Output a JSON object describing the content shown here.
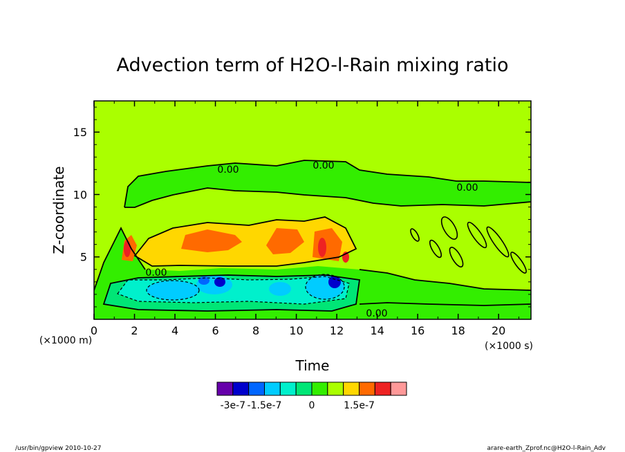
{
  "chart_data": {
    "type": "heatmap",
    "title": "Advection term of H2O-l-Rain mixing ratio",
    "xlabel": "Time",
    "ylabel": "Z-coordinate",
    "x_unit_note": "(×1000 s)",
    "y_unit_note": "(×1000 m)",
    "xlim": [
      0,
      21.6
    ],
    "ylim": [
      0,
      17.5
    ],
    "x_ticks": [
      "0",
      "2",
      "4",
      "6",
      "8",
      "10",
      "12",
      "14",
      "16",
      "18",
      "20"
    ],
    "y_ticks": [
      "5",
      "10",
      "15"
    ],
    "contour_labels": [
      "0.00",
      "0.00",
      "0.00",
      "0.00",
      "0.00"
    ],
    "colorbar": {
      "colors": [
        "#6600aa",
        "#0000cc",
        "#0066ff",
        "#00ccff",
        "#00f0cc",
        "#00e676",
        "#33ee00",
        "#aaff00",
        "#ffd700",
        "#ff6a00",
        "#ee2222",
        "#ff9999"
      ],
      "tick_labels": [
        "-3e-7",
        "-1.5e-7",
        "0",
        "1.5e-7"
      ]
    },
    "grid": false
  },
  "footer": {
    "left": "/usr/bin/gpview   2010-10-27",
    "right": "arare-earth_Zprof.nc@H2O-l-Rain_Adv"
  }
}
